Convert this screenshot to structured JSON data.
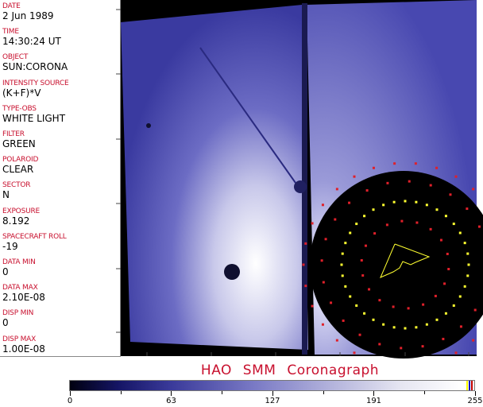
{
  "header_fields": [
    {
      "label": "DATE",
      "value": "2 Jun 1989"
    },
    {
      "label": "TIME",
      "value": "14:30:24 UT"
    },
    {
      "label": "OBJECT",
      "value": "SUN:CORONA"
    },
    {
      "label": "INTENSITY SOURCE",
      "value": "(K+F)*V"
    },
    {
      "label": "TYPE-OBS",
      "value": "WHITE LIGHT"
    },
    {
      "label": "FILTER",
      "value": "GREEN"
    },
    {
      "label": "POLAROID",
      "value": "CLEAR"
    },
    {
      "label": "SECTOR",
      "value": "N"
    },
    {
      "label": "EXPOSURE",
      "value": "8.192"
    },
    {
      "label": "SPACECRAFT ROLL",
      "value": "-19"
    },
    {
      "label": "DATA MIN",
      "value": "0"
    },
    {
      "label": "DATA MAX",
      "value": "2.10E-08"
    },
    {
      "label": "DISP MIN",
      "value": "0"
    },
    {
      "label": "DISP MAX",
      "value": "1.00E-08"
    }
  ],
  "title": "HAO  SMM Coronagraph",
  "colorbar": {
    "ticks": [
      "0",
      "63",
      "127",
      "191",
      "255"
    ],
    "colors": [
      "#000010",
      "#3a3a9a",
      "#b4b4dc",
      "#ffffff"
    ],
    "end_colors": [
      "#ffff00",
      "#0000c0",
      "#c00000"
    ]
  },
  "overlay_colors": {
    "red": "#e0202a",
    "yellow": "#ffff30"
  }
}
